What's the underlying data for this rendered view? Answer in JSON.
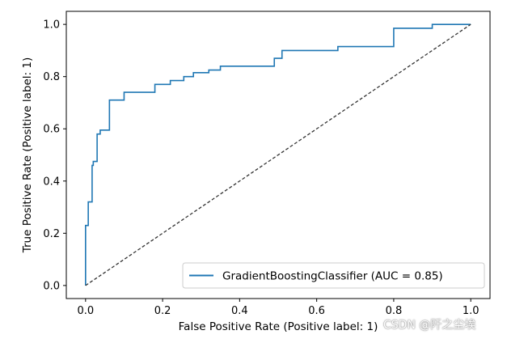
{
  "chart_data": {
    "type": "line",
    "xlabel": "False Positive Rate (Positive label: 1)",
    "ylabel": "True Positive Rate (Positive label: 1)",
    "xlim": [
      -0.05,
      1.05
    ],
    "ylim": [
      -0.05,
      1.05
    ],
    "xticks": [
      "0.0",
      "0.2",
      "0.4",
      "0.6",
      "0.8",
      "1.0"
    ],
    "yticks": [
      "0.0",
      "0.2",
      "0.4",
      "0.6",
      "0.8",
      "1.0"
    ],
    "grid": false,
    "legend_position": "lower-right",
    "series": [
      {
        "name": "GradientBoostingClassifier (AUC = 0.85)",
        "color": "#1f77b4",
        "style": "solid",
        "x": [
          0.0,
          0.0,
          0.007,
          0.007,
          0.017,
          0.017,
          0.02,
          0.02,
          0.03,
          0.03,
          0.038,
          0.038,
          0.045,
          0.045,
          0.062,
          0.062,
          0.1,
          0.1,
          0.18,
          0.18,
          0.22,
          0.22,
          0.255,
          0.255,
          0.28,
          0.28,
          0.32,
          0.32,
          0.35,
          0.35,
          0.49,
          0.49,
          0.51,
          0.51,
          0.655,
          0.655,
          0.8,
          0.8,
          0.8,
          0.8,
          0.9,
          0.9,
          1.0
        ],
        "y": [
          0.0,
          0.23,
          0.23,
          0.32,
          0.32,
          0.46,
          0.46,
          0.475,
          0.475,
          0.58,
          0.58,
          0.595,
          0.595,
          0.595,
          0.595,
          0.71,
          0.71,
          0.74,
          0.74,
          0.77,
          0.77,
          0.785,
          0.785,
          0.8,
          0.8,
          0.815,
          0.815,
          0.825,
          0.825,
          0.84,
          0.84,
          0.87,
          0.87,
          0.9,
          0.9,
          0.915,
          0.915,
          0.93,
          0.96,
          0.985,
          0.985,
          1.0,
          1.0
        ]
      },
      {
        "name": "chance-diagonal",
        "color": "#333333",
        "style": "dashed",
        "x": [
          0.0,
          1.0
        ],
        "y": [
          0.0,
          1.0
        ]
      }
    ]
  },
  "watermark": "CSDN @阡之尘埃"
}
